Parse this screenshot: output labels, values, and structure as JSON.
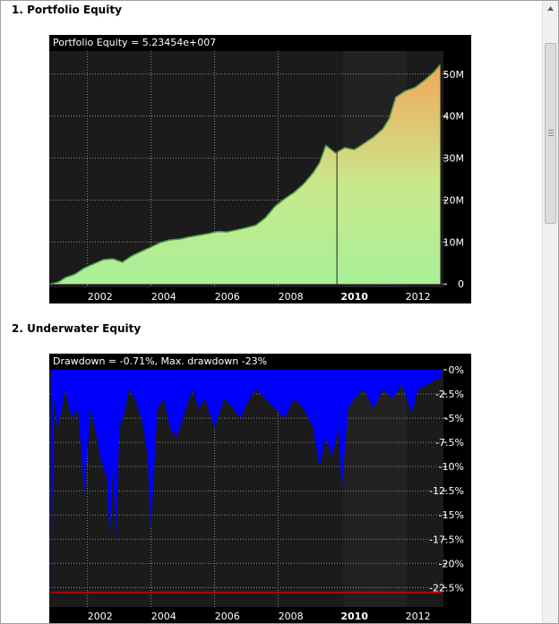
{
  "section1": {
    "title": "1. Portfolio Equity"
  },
  "section2": {
    "title": "2. Underwater Equity"
  },
  "chart_data": [
    {
      "type": "area",
      "title": "Portfolio Equity = 5.23454e+007",
      "xlabel": "",
      "ylabel": "",
      "x_ticks": [
        "2002",
        "2004",
        "2006",
        "2008",
        "2010",
        "2012"
      ],
      "y_ticks": [
        "0",
        "10M",
        "20M",
        "30M",
        "40M",
        "50M"
      ],
      "y_tick_values": [
        0,
        10000000,
        20000000,
        30000000,
        40000000,
        50000000
      ],
      "xlim": [
        2000.5,
        2012.9
      ],
      "ylim": [
        -800000,
        55500000
      ],
      "grid": true,
      "colors": {
        "background": "#1b1b1b",
        "fill_low": "#a8f098",
        "fill_high": "#f2a65a",
        "line": "#4f9a4f",
        "grid": "#8a8a8a",
        "text": "#ffffff"
      },
      "series": [
        {
          "x": [
            2000.55,
            2000.8,
            2001.0,
            2001.3,
            2001.6,
            2001.9,
            2002.2,
            2002.5,
            2002.8,
            2003.1,
            2003.4,
            2003.7,
            2004.0,
            2004.3,
            2004.6,
            2004.9,
            2005.2,
            2005.5,
            2005.8,
            2006.1,
            2006.4,
            2006.7,
            2007.0,
            2007.3,
            2007.6,
            2007.9,
            2008.2,
            2008.5,
            2008.8,
            2009.0,
            2009.2,
            2009.5,
            2009.8,
            2010.1,
            2010.4,
            2010.7,
            2011.0,
            2011.2,
            2011.4,
            2011.7,
            2012.0,
            2012.3,
            2012.6,
            2012.8
          ],
          "values": [
            0,
            500000,
            1500000,
            2300000,
            3800000,
            4800000,
            5800000,
            6000000,
            5200000,
            6700000,
            7800000,
            8800000,
            9900000,
            10500000,
            10700000,
            11200000,
            11600000,
            12000000,
            12500000,
            12400000,
            12900000,
            13400000,
            14000000,
            15800000,
            18500000,
            20300000,
            21800000,
            23800000,
            26500000,
            28800000,
            33000000,
            31200000,
            32500000,
            32000000,
            33500000,
            35000000,
            37000000,
            39500000,
            44500000,
            46000000,
            46800000,
            48500000,
            50500000,
            52300000
          ]
        }
      ]
    },
    {
      "type": "area",
      "title": "Drawdown = -0.71%, Max. drawdown -23%",
      "xlabel": "",
      "ylabel": "",
      "x_ticks": [
        "2002",
        "2004",
        "2006",
        "2008",
        "2010",
        "2012"
      ],
      "y_ticks": [
        "0%",
        "-2.5%",
        "-5%",
        "-7.5%",
        "-10%",
        "-12.5%",
        "-15%",
        "-17.5%",
        "-20%",
        "-22.5%"
      ],
      "y_tick_values": [
        0,
        -2.5,
        -5,
        -7.5,
        -10,
        -12.5,
        -15,
        -17.5,
        -20,
        -22.5
      ],
      "xlim": [
        2000.5,
        2012.9
      ],
      "ylim": [
        -24.5,
        0
      ],
      "max_drawdown": -23,
      "grid": true,
      "colors": {
        "background": "#1b1b1b",
        "fill": "#0000ff",
        "max_line": "#c00000",
        "grid": "#8a8a8a",
        "text": "#ffffff"
      },
      "series": [
        {
          "x": [
            2000.55,
            2000.65,
            2000.75,
            2000.9,
            2001.0,
            2001.2,
            2001.4,
            2001.5,
            2001.6,
            2001.8,
            2002.0,
            2002.1,
            2002.3,
            2002.4,
            2002.5,
            2002.6,
            2002.7,
            2002.9,
            2003.0,
            2003.2,
            2003.4,
            2003.6,
            2003.7,
            2003.9,
            2004.1,
            2004.3,
            2004.5,
            2004.7,
            2005.0,
            2005.2,
            2005.4,
            2005.7,
            2006.0,
            2006.3,
            2006.5,
            2006.8,
            2007.0,
            2007.3,
            2007.6,
            2007.9,
            2008.2,
            2008.5,
            2008.8,
            2009.0,
            2009.2,
            2009.4,
            2009.6,
            2009.7,
            2009.9,
            2010.1,
            2010.4,
            2010.7,
            2011.0,
            2011.3,
            2011.6,
            2011.9,
            2012.1,
            2012.4,
            2012.7,
            2012.85
          ],
          "values": [
            -23,
            -3,
            -6,
            -4,
            -2,
            -5,
            -4,
            -8,
            -13,
            -4,
            -7,
            -9,
            -11,
            -17.5,
            -10,
            -17.8,
            -6,
            -4,
            -2,
            -3,
            -5,
            -9,
            -16.5,
            -4,
            -3,
            -6,
            -7,
            -5,
            -2,
            -4,
            -3,
            -6,
            -3,
            -4,
            -5,
            -3,
            -2,
            -3,
            -4,
            -5,
            -3,
            -4,
            -6,
            -10,
            -7,
            -9,
            -6,
            -12.5,
            -4,
            -3,
            -2,
            -4,
            -2,
            -3,
            -1.5,
            -4.5,
            -2,
            -1.5,
            -1,
            -0.71
          ]
        }
      ]
    }
  ]
}
